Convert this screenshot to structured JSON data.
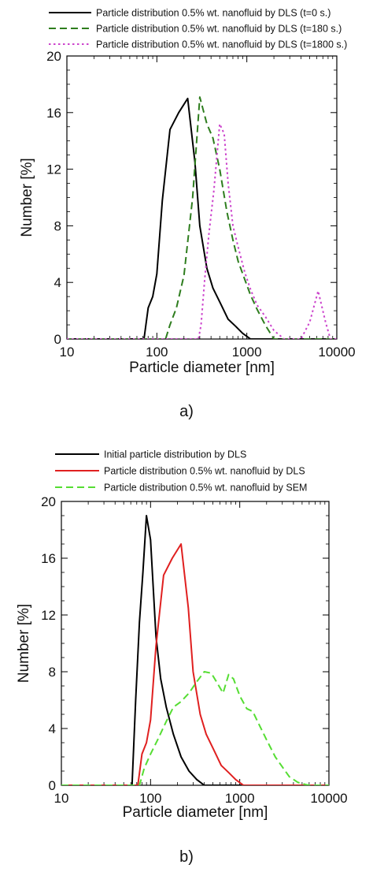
{
  "chart_data": [
    {
      "type": "line",
      "panel_label": "a)",
      "xlabel": "Particle diameter [nm]",
      "ylabel": "Number [%]",
      "xscale": "log",
      "xlim": [
        10,
        10000
      ],
      "ylim": [
        0,
        20
      ],
      "xticks": [
        "10",
        "100",
        "1000",
        "10000"
      ],
      "yticks": [
        "0",
        "4",
        "8",
        "12",
        "16",
        "20"
      ],
      "grid": false,
      "legend_position": "top",
      "series": [
        {
          "name": "Particle distribution 0.5% wt. nanofluid by DLS (t=0 s.)",
          "color": "#000000",
          "dash": "solid",
          "x": [
            10,
            72,
            80,
            90,
            100,
            115,
            140,
            175,
            220,
            265,
            300,
            360,
            420,
            520,
            620,
            750,
            900,
            1100,
            10000
          ],
          "y": [
            0,
            0,
            2.2,
            3.0,
            4.6,
            9.8,
            14.8,
            16.0,
            17.0,
            12.5,
            8.0,
            5.0,
            3.6,
            2.4,
            1.4,
            0.9,
            0.4,
            0,
            0
          ]
        },
        {
          "name": "Particle distribution 0.5% wt. nanofluid by DLS (t=180 s.)",
          "color": "#2e7d1e",
          "dash": "dashed",
          "x": [
            10,
            125,
            140,
            165,
            200,
            250,
            300,
            360,
            420,
            500,
            600,
            700,
            800,
            950,
            1100,
            1300,
            1600,
            2000,
            10000
          ],
          "y": [
            0,
            0,
            1.0,
            2.2,
            4.5,
            10.0,
            17.1,
            15.2,
            14.2,
            12.0,
            9.0,
            7.0,
            5.5,
            4.2,
            3.1,
            2.1,
            1.0,
            0,
            0
          ]
        },
        {
          "name": "Particle distribution 0.5% wt. nanofluid by DLS (t=1800 s.)",
          "color": "#cc44cc",
          "dash": "dotted",
          "x": [
            10,
            290,
            310,
            340,
            380,
            430,
            500,
            560,
            620,
            700,
            800,
            950,
            1100,
            1300,
            1600,
            2000,
            2600,
            4000,
            5000,
            6200,
            7500,
            8500,
            10000
          ],
          "y": [
            0,
            0,
            1.0,
            4.2,
            7.5,
            10.5,
            15.2,
            14.5,
            11.0,
            8.0,
            6.5,
            4.7,
            3.5,
            2.4,
            1.6,
            0.6,
            0,
            0,
            1.2,
            3.4,
            1.2,
            0,
            0
          ]
        }
      ]
    },
    {
      "type": "line",
      "panel_label": "b)",
      "xlabel": "Particle diameter [nm]",
      "ylabel": "Number [%]",
      "xscale": "log",
      "xlim": [
        10,
        10000
      ],
      "ylim": [
        0,
        20
      ],
      "xticks": [
        "10",
        "100",
        "1000",
        "10000"
      ],
      "yticks": [
        "0",
        "4",
        "8",
        "12",
        "16",
        "20"
      ],
      "grid": false,
      "legend_position": "top",
      "series": [
        {
          "name": "Initial particle distribution by DLS",
          "color": "#000000",
          "dash": "solid",
          "x": [
            10,
            62,
            68,
            75,
            82,
            90,
            100,
            115,
            130,
            150,
            180,
            220,
            270,
            330,
            400,
            10000
          ],
          "y": [
            0,
            0,
            6.0,
            11.5,
            15.0,
            19.0,
            17.3,
            10.5,
            7.5,
            5.5,
            3.6,
            2.0,
            1.0,
            0.4,
            0,
            0
          ]
        },
        {
          "name": "Particle distribution 0.5% wt. nanofluid by DLS",
          "color": "#e02020",
          "dash": "solid",
          "x": [
            10,
            72,
            80,
            90,
            100,
            115,
            140,
            175,
            220,
            265,
            300,
            360,
            420,
            520,
            620,
            750,
            900,
            1100,
            10000
          ],
          "y": [
            0,
            0,
            2.2,
            3.0,
            4.6,
            9.8,
            14.8,
            16.0,
            17.0,
            12.5,
            8.0,
            5.0,
            3.6,
            2.4,
            1.4,
            0.9,
            0.4,
            0,
            0
          ]
        },
        {
          "name": "Particle distribution 0.5% wt. nanofluid by SEM",
          "color": "#55dd33",
          "dash": "dashed",
          "x": [
            10,
            75,
            85,
            100,
            120,
            150,
            180,
            220,
            270,
            330,
            400,
            480,
            560,
            650,
            750,
            850,
            1000,
            1200,
            1400,
            1700,
            2000,
            2500,
            3000,
            3600,
            4500,
            5500,
            6000,
            10000
          ],
          "y": [
            0,
            0,
            1.2,
            2.2,
            3.2,
            4.5,
            5.5,
            5.9,
            6.5,
            7.3,
            8.0,
            7.9,
            7.2,
            6.5,
            7.8,
            7.5,
            6.3,
            5.4,
            5.2,
            4.1,
            3.2,
            2.0,
            1.3,
            0.6,
            0.2,
            0.05,
            0,
            0
          ]
        }
      ]
    }
  ]
}
